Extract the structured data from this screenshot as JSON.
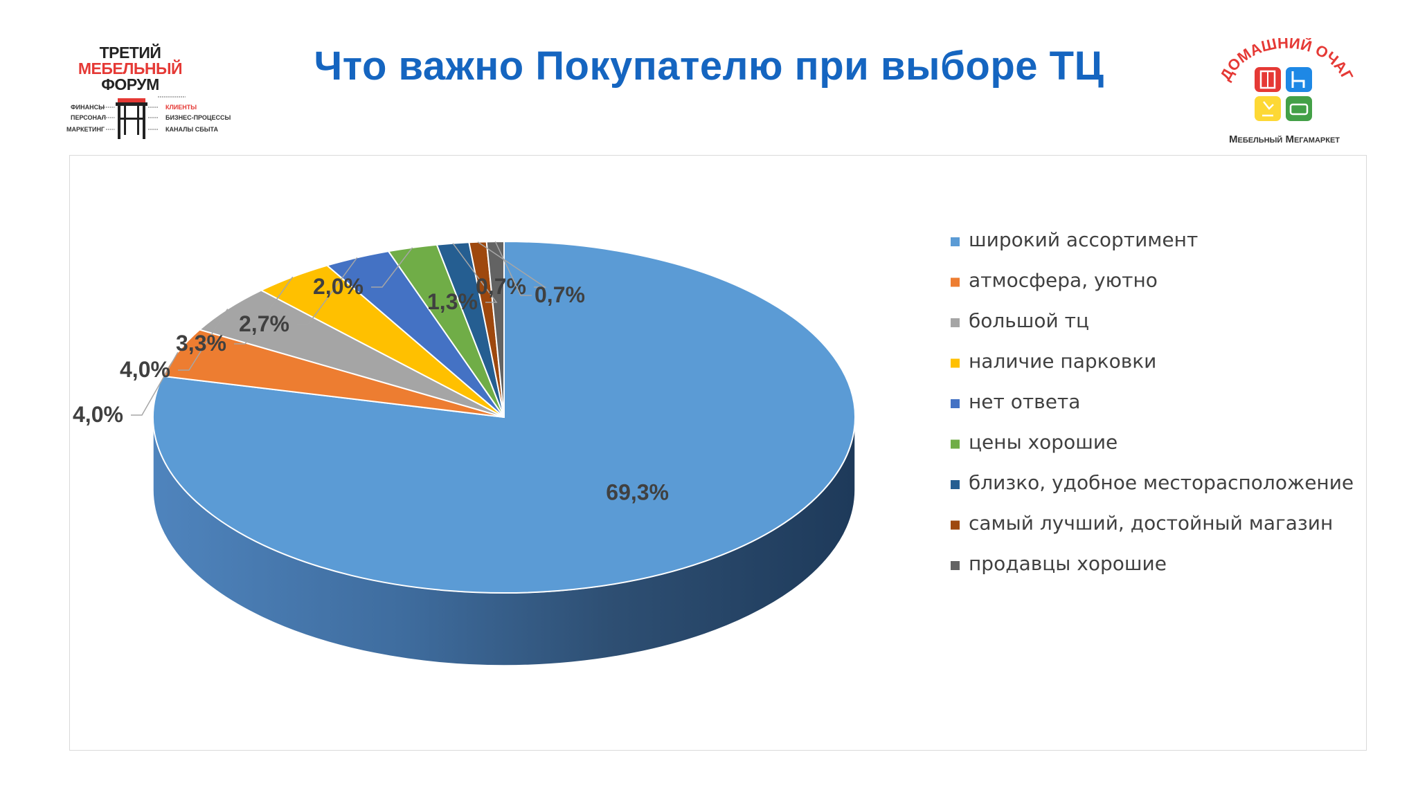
{
  "slide": {
    "title": "Что важно Покупателю при выборе ТЦ"
  },
  "forum_logo": {
    "line1": "ТРЕТИЙ",
    "line2": "МЕБЕЛЬНЫЙ",
    "line3": "ФОРУМ",
    "left_items": [
      "ФИНАНСЫ",
      "ПЕРСОНАЛ",
      "МАРКЕТИНГ"
    ],
    "right_items": [
      "КЛИЕНТЫ",
      "БИЗНЕС-ПРОЦЕССЫ",
      "КАНАЛЫ СБЫТА"
    ],
    "colors": {
      "accent": "#e53935",
      "text": "#222222"
    }
  },
  "store_logo": {
    "arc_text": "ДОМАШНИЙ ОЧАГ",
    "tagline": "Мебельный Мегамаркет",
    "tile_colors": [
      "#e53935",
      "#1e88e5",
      "#fdd835",
      "#43a047"
    ],
    "tile_icons": [
      "cabinet-icon",
      "chair-icon",
      "lamp-icon",
      "sofa-icon"
    ]
  },
  "chart_data": {
    "type": "pie",
    "style": "3d",
    "title": "",
    "legend_position": "right",
    "categories": [
      "широкий ассортимент",
      "атмосфера, уютно",
      "большой тц",
      "наличие парковки",
      "нет ответа",
      "цены хорошие",
      "близко, удобное месторасположение",
      "самый лучший, достойный магазин",
      "продавцы хорошие"
    ],
    "values": [
      69.3,
      4.0,
      4.0,
      3.3,
      2.7,
      2.0,
      1.3,
      0.7,
      0.7
    ],
    "value_labels": [
      "69,3%",
      "4,0%",
      "4,0%",
      "3,3%",
      "2,7%",
      "2,0%",
      "1,3%",
      "0,7%",
      "0,7%"
    ],
    "colors": [
      "#5b9bd5",
      "#ed7d31",
      "#a5a5a5",
      "#ffc000",
      "#4472c4",
      "#70ad47",
      "#255e91",
      "#9e480e",
      "#636363"
    ]
  }
}
